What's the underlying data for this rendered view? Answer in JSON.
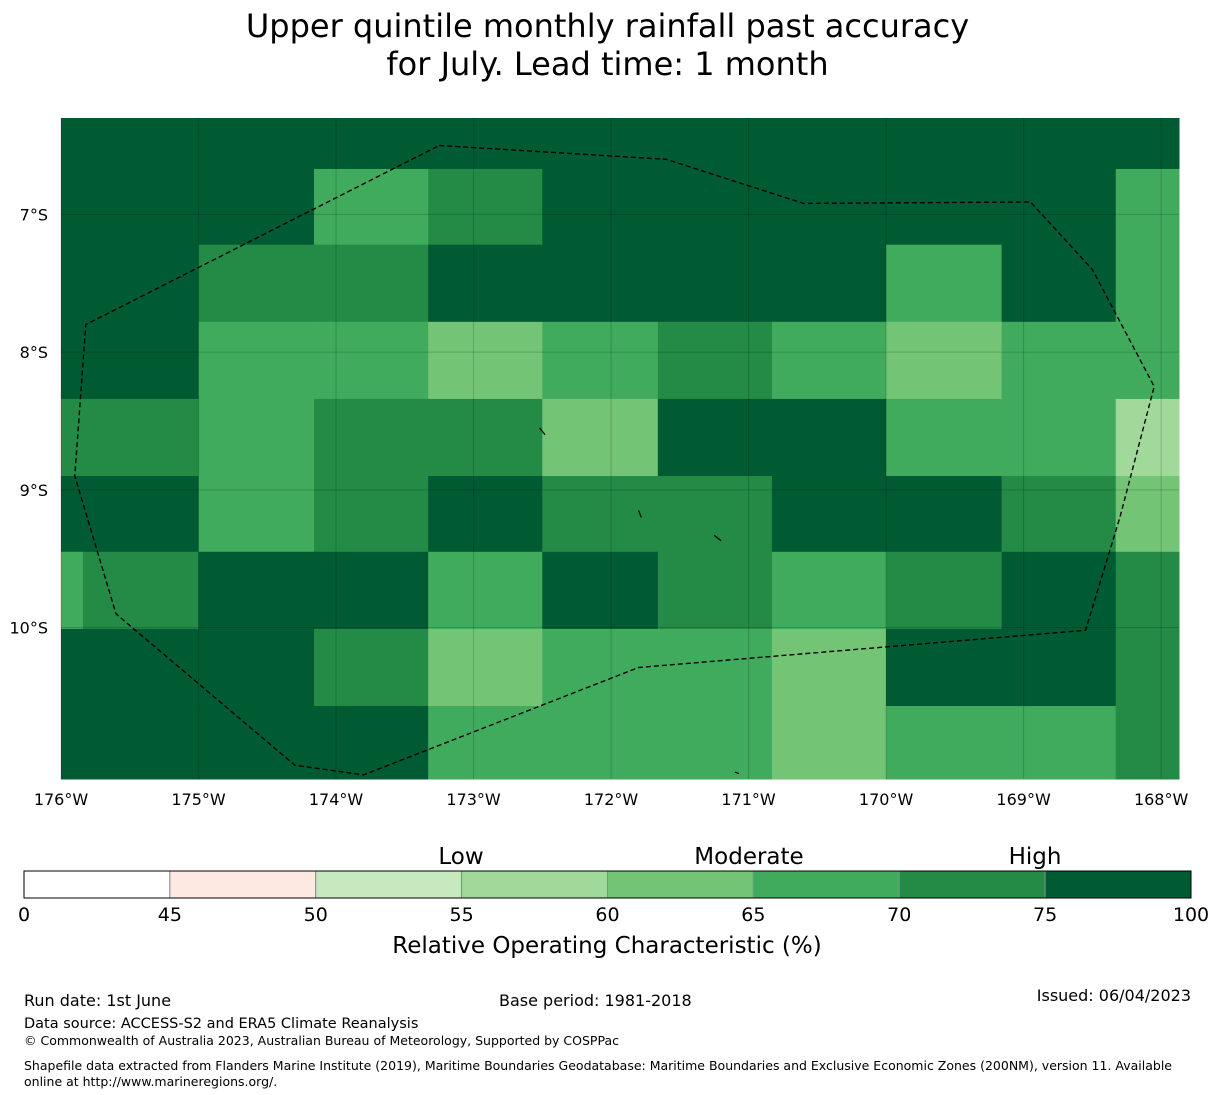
{
  "title_line1": "Upper quintile monthly rainfall past accuracy",
  "title_line2": "for July. Lead time: 1 month",
  "map": {
    "lon_range": [
      -176,
      -167.87
    ],
    "lat_range": [
      -11.1,
      -6.3
    ],
    "lat_ticks": [
      {
        "value": -7,
        "label": "7°S"
      },
      {
        "value": -8,
        "label": "8°S"
      },
      {
        "value": -9,
        "label": "9°S"
      },
      {
        "value": -10,
        "label": "10°S"
      }
    ],
    "lon_ticks": [
      {
        "value": -176,
        "label": "176°W"
      },
      {
        "value": -175,
        "label": "175°W"
      },
      {
        "value": -174,
        "label": "174°W"
      },
      {
        "value": -173,
        "label": "173°W"
      },
      {
        "value": -172,
        "label": "172°W"
      },
      {
        "value": -171,
        "label": "171°W"
      },
      {
        "value": -170,
        "label": "170°W"
      },
      {
        "value": -169,
        "label": "169°W"
      },
      {
        "value": -168,
        "label": "168°W"
      }
    ],
    "grid_note": "values are ROC class (%) lower bound per cell; rows north to south",
    "cells": [
      {
        "lat": [
          -6.3,
          -6.67
        ],
        "row": [
          75,
          75,
          75,
          75,
          75,
          75,
          75,
          75,
          75,
          75
        ]
      },
      {
        "lat": [
          -6.67,
          -7.22
        ],
        "row": [
          75,
          75,
          65,
          70,
          75,
          75,
          75,
          75,
          75,
          65
        ]
      },
      {
        "lat": [
          -7.22,
          -7.78
        ],
        "row": [
          75,
          70,
          70,
          75,
          75,
          75,
          75,
          65,
          75,
          65
        ]
      },
      {
        "lat": [
          -7.78,
          -8.34
        ],
        "row": [
          75,
          65,
          65,
          60,
          65,
          70,
          65,
          60,
          65,
          65
        ]
      },
      {
        "lat": [
          -8.34,
          -8.9
        ],
        "row": [
          70,
          65,
          70,
          70,
          60,
          75,
          75,
          65,
          65,
          55
        ]
      },
      {
        "lat": [
          -8.9,
          -9.45
        ],
        "row": [
          75,
          65,
          70,
          75,
          70,
          70,
          75,
          75,
          70,
          60
        ]
      },
      {
        "lat": [
          -9.45,
          -10.01
        ],
        "row": [
          70,
          75,
          75,
          65,
          75,
          70,
          65,
          70,
          75,
          70
        ]
      },
      {
        "lat": [
          -10.01,
          -10.57
        ],
        "row": [
          75,
          75,
          70,
          60,
          65,
          65,
          60,
          75,
          75,
          70
        ]
      },
      {
        "lat": [
          -10.57,
          -11.1
        ],
        "row": [
          75,
          75,
          75,
          65,
          65,
          65,
          60,
          65,
          65,
          70
        ]
      }
    ],
    "col_lon_edges": [
      -176,
      -175,
      -174.16,
      -173.33,
      -172.5,
      -171.66,
      -170.83,
      -170,
      -169.16,
      -168.33,
      -167.87
    ],
    "boundary": [
      [
        -173.25,
        -6.5
      ],
      [
        -171.6,
        -6.6
      ],
      [
        -170.6,
        -6.92
      ],
      [
        -168.95,
        -6.91
      ],
      [
        -168.5,
        -7.4
      ],
      [
        -168.05,
        -8.25
      ],
      [
        -168.3,
        -9.2
      ],
      [
        -168.55,
        -10.02
      ],
      [
        -171.8,
        -10.29
      ],
      [
        -173.8,
        -11.07
      ],
      [
        -174.3,
        -11.0
      ],
      [
        -175.6,
        -9.9
      ],
      [
        -175.9,
        -8.9
      ],
      [
        -175.82,
        -7.8
      ],
      [
        -173.25,
        -6.5
      ]
    ]
  },
  "colorbar": {
    "bins": [
      {
        "from": 0,
        "to": 45,
        "color": "#ffffff"
      },
      {
        "from": 45,
        "to": 50,
        "color": "#fde9e1"
      },
      {
        "from": 50,
        "to": 55,
        "color": "#c7e9c0"
      },
      {
        "from": 55,
        "to": 60,
        "color": "#a1d99b"
      },
      {
        "from": 60,
        "to": 65,
        "color": "#74c476"
      },
      {
        "from": 65,
        "to": 70,
        "color": "#41ab5d"
      },
      {
        "from": 70,
        "to": 75,
        "color": "#238b45"
      },
      {
        "from": 75,
        "to": 100,
        "color": "#005a32"
      }
    ],
    "tick_labels": [
      "0",
      "45",
      "50",
      "55",
      "60",
      "65",
      "70",
      "75",
      "100"
    ],
    "category_labels": [
      "Low",
      "Moderate",
      "High"
    ],
    "label": "Relative Operating Characteristic (%)"
  },
  "footer": {
    "run_date": "Run date: 1st June",
    "base_period": "Base period: 1981-2018",
    "issued": "Issued: 06/04/2023",
    "data_source": "Data source: ACCESS-S2 and ERA5 Climate Reanalysis",
    "copyright": "© Commonwealth of Australia 2023, Australian Bureau of Meteorology, Supported by COSPPac",
    "shapefile": "Shapefile data extracted from Flanders Marine Institute (2019), Maritime Boundaries Geodatabase: Maritime Boundaries and Exclusive Economic Zones (200NM), version 11. Available online at http://www.marineregions.org/."
  }
}
